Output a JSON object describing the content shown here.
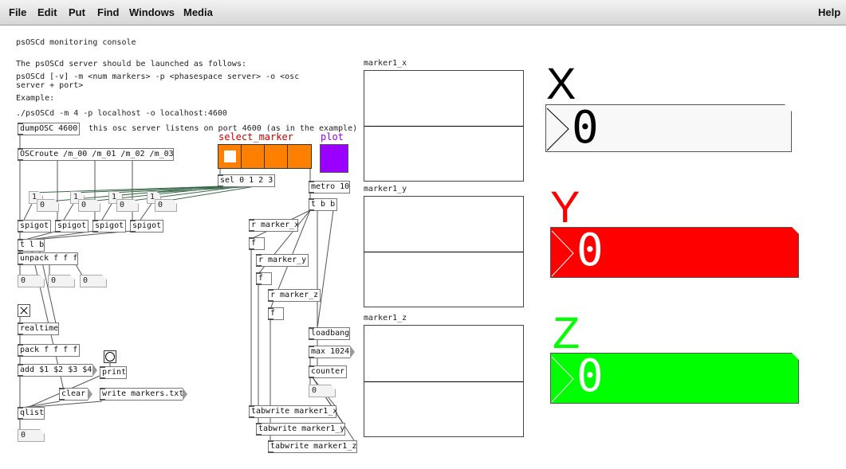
{
  "menubar": {
    "items": [
      "File",
      "Edit",
      "Put",
      "Find",
      "Windows",
      "Media"
    ],
    "help": "Help"
  },
  "comments": {
    "title": "psOSCd monitoring console",
    "launch_intro": "The psOSCd server should be launched as follows:",
    "launch_usage_1": "psOSCd [-v] -m <num markers> -p <phasespace server> -o <osc",
    "launch_usage_2": "server + port>",
    "example_label": "Example:",
    "example_cmd": "./psOSCd -m 4 -p localhost -o localhost:4600",
    "listen_note": "this osc server listens on port 4600 (as in the example)"
  },
  "objects": {
    "dumposc": "dumpOSC 4600",
    "oscroute": "OSCroute /m_00 /m_01 /m_02 /m_03",
    "sel": "sel 0 1 2 3",
    "metro": "metro 10",
    "tbb": "t b b",
    "spigot": "spigot",
    "tlb": "t l b",
    "unpack": "unpack f f f",
    "r_x": "r marker_x",
    "r_y": "r marker_y",
    "r_z": "r marker_z",
    "f": "f",
    "realtime": "realtime",
    "pack": "pack f f f f",
    "add_msg": "add $1 $2 $3 $4",
    "print": "print",
    "clear": "clear",
    "write_msg": "write markers.txt",
    "qlist": "qlist",
    "loadbang": "loadbang",
    "max": "max 1024",
    "counter": "counter",
    "tabwrite_x": "tabwrite marker1_x",
    "tabwrite_y": "tabwrite marker1_y",
    "tabwrite_z": "tabwrite marker1_z"
  },
  "numbers": {
    "zero": "0",
    "one": "1"
  },
  "gui": {
    "select_marker_label": "select_marker",
    "select_marker_color": "#ff8000",
    "select_marker_label_color": "#cc0000",
    "select_marker_selected": 0,
    "plot_label": "plot",
    "plot_color": "#9900ff"
  },
  "arrays": {
    "x_label": "marker1_x",
    "y_label": "marker1_y",
    "z_label": "marker1_z"
  },
  "display": {
    "x": {
      "label": "X",
      "value": "0",
      "label_color": "#000000",
      "box_color": "#f8f8f8",
      "text_color": "#000000"
    },
    "y": {
      "label": "Y",
      "value": "0",
      "label_color": "#ff0000",
      "box_color": "#ff0000",
      "text_color": "#ffffff"
    },
    "z": {
      "label": "Z",
      "value": "0",
      "label_color": "#00ff00",
      "box_color": "#00ff00",
      "text_color": "#ffffff"
    }
  }
}
